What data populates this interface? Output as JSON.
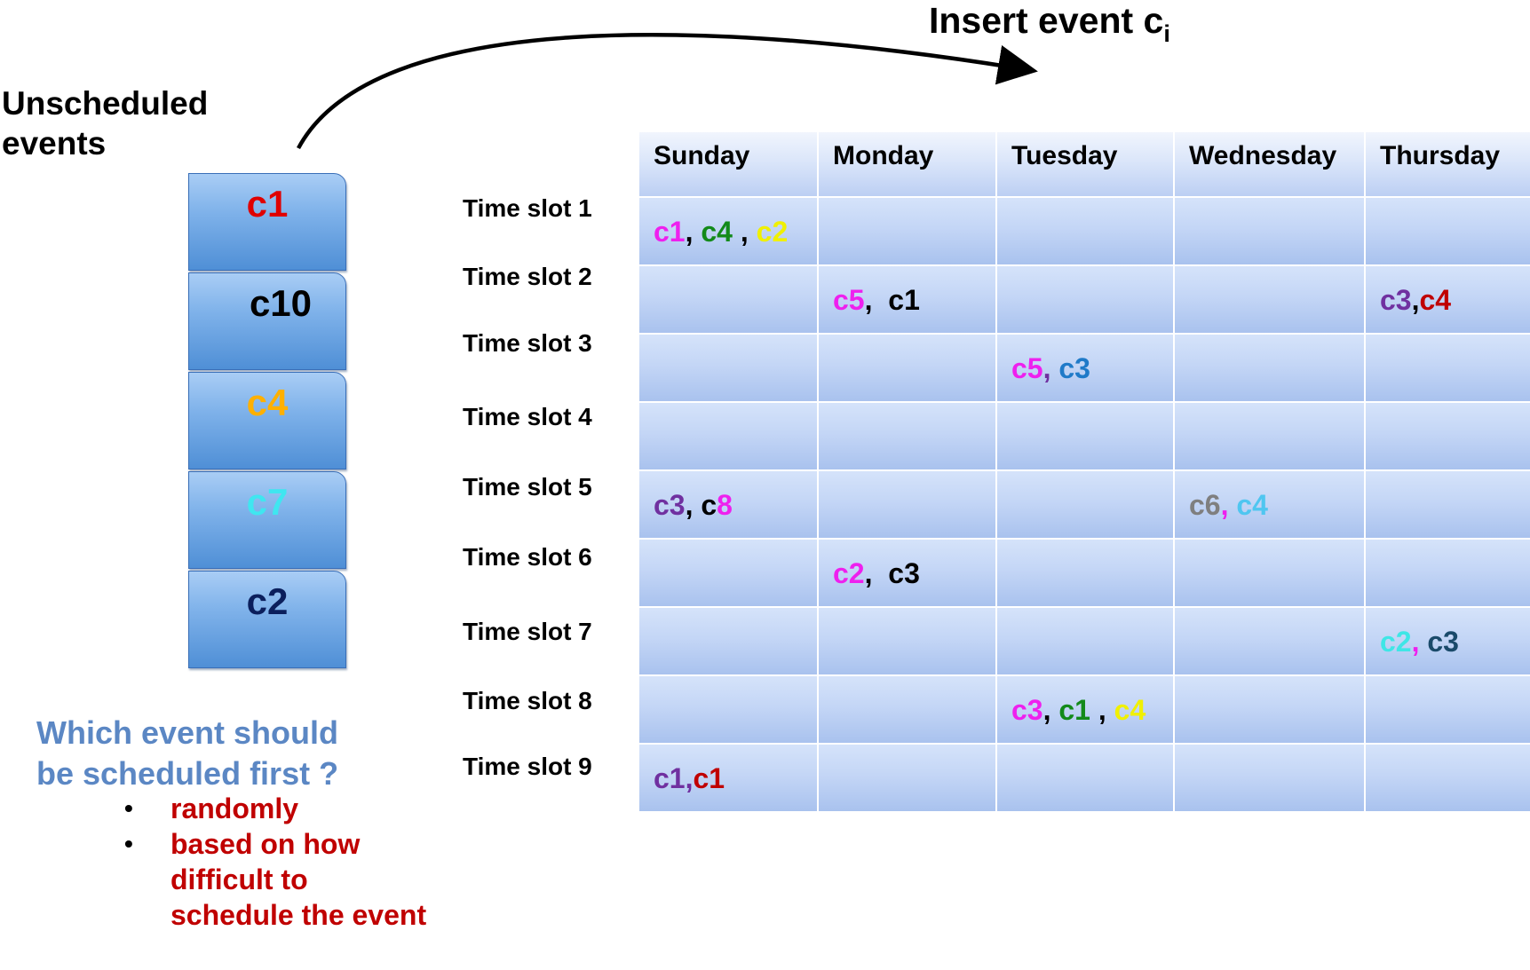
{
  "insert": {
    "text": "Insert event c",
    "sub": "i"
  },
  "unscheduled": {
    "line1": "Unscheduled",
    "line2": "events"
  },
  "stack": [
    {
      "label": "c1",
      "color": "#e00000"
    },
    {
      "label": "c10",
      "color": "#000000"
    },
    {
      "label": "c4",
      "color": "#ffb000"
    },
    {
      "label": "c7",
      "color": "#3fe6f0"
    },
    {
      "label": "c2",
      "color": "#0b1f5c"
    }
  ],
  "question": {
    "line1": "Which event should",
    "line2": "be scheduled first ?",
    "options": [
      {
        "bullet": "•",
        "text": "randomly"
      },
      {
        "bullet": "•",
        "text": "based on how difficult to schedule the event"
      }
    ]
  },
  "days": [
    "Sunday",
    "Monday",
    "Tuesday",
    "Wednesday",
    "Thursday"
  ],
  "slots": [
    "Time slot 1",
    "Time slot 2",
    "Time slot 3",
    "Time slot 4",
    "Time slot 5",
    "Time slot 6",
    "Time slot 7",
    "Time slot 8",
    "Time slot 9"
  ],
  "entries": [
    {
      "slot": 0,
      "day": 0,
      "parts": [
        {
          "t": "c1",
          "c": "#ee20ee"
        },
        {
          "t": ", ",
          "c": "#000000"
        },
        {
          "t": "c4",
          "c": "#138a1a"
        },
        {
          "t": " , ",
          "c": "#000000"
        },
        {
          "t": "c2",
          "c": "#f0f000"
        }
      ]
    },
    {
      "slot": 1,
      "day": 1,
      "parts": [
        {
          "t": "c5",
          "c": "#ee20ee"
        },
        {
          "t": ",  ",
          "c": "#000000"
        },
        {
          "t": "c1",
          "c": "#000000"
        }
      ]
    },
    {
      "slot": 1,
      "day": 4,
      "parts": [
        {
          "t": "c3",
          "c": "#7030a0"
        },
        {
          "t": ",",
          "c": "#000000"
        },
        {
          "t": "c4",
          "c": "#c00000"
        }
      ]
    },
    {
      "slot": 2,
      "day": 2,
      "parts": [
        {
          "t": "c5",
          "c": "#ee20ee"
        },
        {
          "t": ", ",
          "c": "#7030a0"
        },
        {
          "t": "c3",
          "c": "#1f7ac8"
        }
      ]
    },
    {
      "slot": 4,
      "day": 0,
      "parts": [
        {
          "t": "c3",
          "c": "#7030a0"
        },
        {
          "t": ", ",
          "c": "#000000"
        },
        {
          "t": "c",
          "c": "#000000"
        },
        {
          "t": "8",
          "c": "#ee20ee"
        }
      ]
    },
    {
      "slot": 4,
      "day": 3,
      "parts": [
        {
          "t": "c6",
          "c": "#7f7f7f"
        },
        {
          "t": ", ",
          "c": "#ee20ee"
        },
        {
          "t": "c4",
          "c": "#4fc6f0"
        }
      ]
    },
    {
      "slot": 5,
      "day": 1,
      "parts": [
        {
          "t": "c2",
          "c": "#ee20ee"
        },
        {
          "t": ",  ",
          "c": "#000000"
        },
        {
          "t": "c3",
          "c": "#000000"
        }
      ]
    },
    {
      "slot": 6,
      "day": 4,
      "parts": [
        {
          "t": "c2",
          "c": "#3fe6e6"
        },
        {
          "t": ", ",
          "c": "#ee20ee"
        },
        {
          "t": "c3",
          "c": "#1a4a6a"
        }
      ]
    },
    {
      "slot": 7,
      "day": 2,
      "parts": [
        {
          "t": "c3",
          "c": "#ee20ee"
        },
        {
          "t": ", ",
          "c": "#000000"
        },
        {
          "t": "c1",
          "c": "#138a1a"
        },
        {
          "t": " , ",
          "c": "#000000"
        },
        {
          "t": "c4",
          "c": "#f0f000"
        }
      ]
    },
    {
      "slot": 8,
      "day": 0,
      "parts": [
        {
          "t": "c1",
          "c": "#7030a0"
        },
        {
          "t": ",",
          "c": "#7030a0"
        },
        {
          "t": "c1",
          "c": "#c00000"
        }
      ]
    }
  ]
}
